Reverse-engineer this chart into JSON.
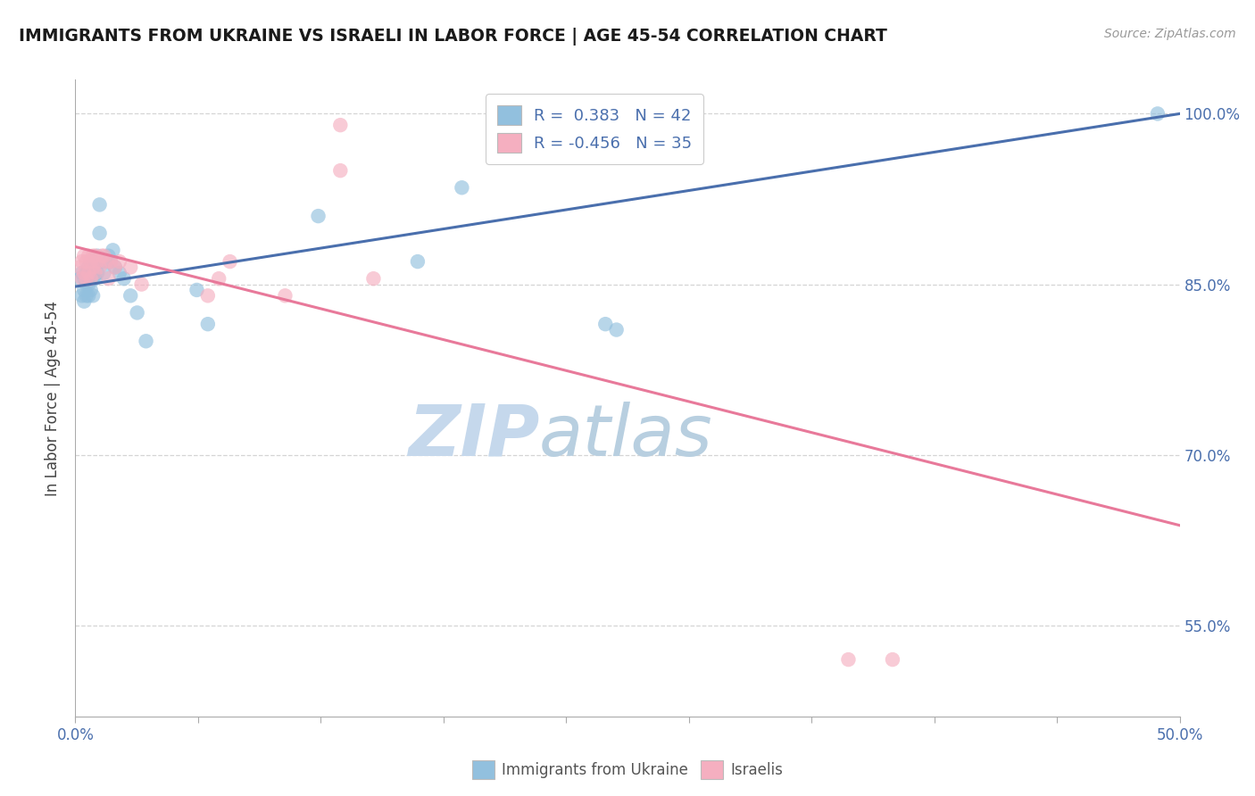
{
  "title": "IMMIGRANTS FROM UKRAINE VS ISRAELI IN LABOR FORCE | AGE 45-54 CORRELATION CHART",
  "source": "Source: ZipAtlas.com",
  "ylabel": "In Labor Force | Age 45-54",
  "xmin": 0.0,
  "xmax": 0.5,
  "ymin": 0.47,
  "ymax": 1.03,
  "ytick_labels": [
    "55.0%",
    "70.0%",
    "85.0%",
    "100.0%"
  ],
  "ytick_values": [
    0.55,
    0.7,
    0.85,
    1.0
  ],
  "legend_r_blue": "R =  0.383",
  "legend_n_blue": "N = 42",
  "legend_r_pink": "R = -0.456",
  "legend_n_pink": "N = 35",
  "blue_scatter_x": [
    0.002,
    0.003,
    0.003,
    0.004,
    0.004,
    0.004,
    0.005,
    0.005,
    0.005,
    0.006,
    0.006,
    0.006,
    0.007,
    0.007,
    0.008,
    0.008,
    0.009,
    0.009,
    0.01,
    0.01,
    0.011,
    0.011,
    0.012,
    0.013,
    0.014,
    0.015,
    0.016,
    0.017,
    0.018,
    0.02,
    0.022,
    0.025,
    0.028,
    0.032,
    0.055,
    0.06,
    0.11,
    0.155,
    0.175,
    0.24,
    0.245,
    0.49
  ],
  "blue_scatter_y": [
    0.855,
    0.86,
    0.84,
    0.855,
    0.845,
    0.835,
    0.86,
    0.85,
    0.84,
    0.865,
    0.85,
    0.84,
    0.86,
    0.845,
    0.855,
    0.84,
    0.87,
    0.855,
    0.875,
    0.86,
    0.92,
    0.895,
    0.87,
    0.86,
    0.87,
    0.875,
    0.87,
    0.88,
    0.865,
    0.86,
    0.855,
    0.84,
    0.825,
    0.8,
    0.845,
    0.815,
    0.91,
    0.87,
    0.935,
    0.815,
    0.81,
    1.0
  ],
  "pink_scatter_x": [
    0.002,
    0.003,
    0.003,
    0.004,
    0.004,
    0.005,
    0.005,
    0.006,
    0.006,
    0.007,
    0.007,
    0.008,
    0.008,
    0.009,
    0.009,
    0.01,
    0.011,
    0.012,
    0.013,
    0.014,
    0.015,
    0.016,
    0.018,
    0.02,
    0.025,
    0.03,
    0.06,
    0.065,
    0.07,
    0.095,
    0.12,
    0.135,
    0.35,
    0.37,
    0.12
  ],
  "pink_scatter_y": [
    0.865,
    0.87,
    0.855,
    0.875,
    0.86,
    0.87,
    0.855,
    0.875,
    0.86,
    0.87,
    0.855,
    0.875,
    0.865,
    0.875,
    0.86,
    0.87,
    0.865,
    0.875,
    0.875,
    0.87,
    0.855,
    0.87,
    0.865,
    0.87,
    0.865,
    0.85,
    0.84,
    0.855,
    0.87,
    0.84,
    0.95,
    0.855,
    0.52,
    0.52,
    0.99
  ],
  "blue_line_x": [
    0.0,
    0.5
  ],
  "blue_line_y": [
    0.848,
    1.0
  ],
  "pink_line_x": [
    0.0,
    0.5
  ],
  "pink_line_y": [
    0.883,
    0.638
  ],
  "watermark_zip": "ZIP",
  "watermark_atlas": "atlas",
  "blue_color": "#92c0de",
  "pink_color": "#f5afc0",
  "blue_line_color": "#4a6fad",
  "pink_line_color": "#e8799a",
  "title_color": "#1a1a1a",
  "tick_label_color": "#4a6fad",
  "source_color": "#999999",
  "legend_text_color": "#4a6fad",
  "background_color": "#ffffff",
  "grid_color": "#d5d5d5",
  "watermark_zip_color": "#c5d8ec",
  "watermark_atlas_color": "#b8cfe0"
}
